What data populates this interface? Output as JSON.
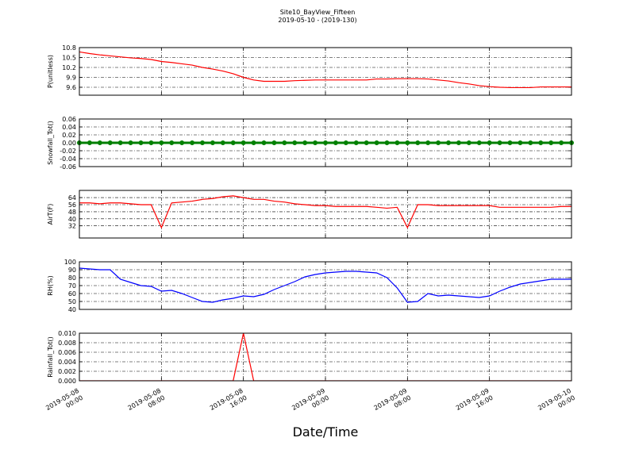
{
  "title": "Site10_BayView_Fifteen",
  "subtitle": "2019-05-10 - (2019-130)",
  "x_label": "Date/Time",
  "xlim": [
    "2019-05-08 00:00",
    "2019-05-10 00:00"
  ],
  "xticks": [
    "2019-05-08 00:00",
    "2019-05-08 08:00",
    "2019-05-08 16:00",
    "2019-05-09 00:00",
    "2019-05-09 08:00",
    "2019-05-09 16:00",
    "2019-05-10 00:00"
  ],
  "x": [
    "2019-05-08 00:00",
    "2019-05-08 01:00",
    "2019-05-08 02:00",
    "2019-05-08 03:00",
    "2019-05-08 04:00",
    "2019-05-08 05:00",
    "2019-05-08 06:00",
    "2019-05-08 07:00",
    "2019-05-08 08:00",
    "2019-05-08 09:00",
    "2019-05-08 10:00",
    "2019-05-08 11:00",
    "2019-05-08 12:00",
    "2019-05-08 13:00",
    "2019-05-08 14:00",
    "2019-05-08 15:00",
    "2019-05-08 16:00",
    "2019-05-08 17:00",
    "2019-05-08 18:00",
    "2019-05-08 19:00",
    "2019-05-08 20:00",
    "2019-05-08 21:00",
    "2019-05-08 22:00",
    "2019-05-08 23:00",
    "2019-05-09 00:00",
    "2019-05-09 01:00",
    "2019-05-09 02:00",
    "2019-05-09 03:00",
    "2019-05-09 04:00",
    "2019-05-09 05:00",
    "2019-05-09 06:00",
    "2019-05-09 07:00",
    "2019-05-09 08:00",
    "2019-05-09 09:00",
    "2019-05-09 10:00",
    "2019-05-09 11:00",
    "2019-05-09 12:00",
    "2019-05-09 13:00",
    "2019-05-09 14:00",
    "2019-05-09 15:00",
    "2019-05-09 16:00",
    "2019-05-09 17:00",
    "2019-05-09 18:00",
    "2019-05-09 19:00",
    "2019-05-09 20:00",
    "2019-05-09 21:00",
    "2019-05-09 22:00",
    "2019-05-09 23:00",
    "2019-05-10 00:00"
  ],
  "chart_data": [
    {
      "type": "line",
      "y_label": "P(unitless)",
      "color": "#ff0000",
      "grid": true,
      "ylim": [
        9.36,
        10.8
      ],
      "yticks": [
        {
          "value": 9.6,
          "label": "9.6"
        },
        {
          "value": 9.9,
          "label": "9.9"
        },
        {
          "value": 10.2,
          "label": "10.2"
        },
        {
          "value": 10.5,
          "label": "10.5"
        },
        {
          "value": 10.8,
          "label": "10.8"
        }
      ],
      "values": [
        10.67,
        10.62,
        10.58,
        10.55,
        10.52,
        10.49,
        10.47,
        10.44,
        10.38,
        10.35,
        10.31,
        10.27,
        10.2,
        10.15,
        10.09,
        10.01,
        9.9,
        9.82,
        9.78,
        9.78,
        9.78,
        9.8,
        9.81,
        9.82,
        9.82,
        9.82,
        9.82,
        9.82,
        9.82,
        9.85,
        9.85,
        9.86,
        9.86,
        9.86,
        9.85,
        9.82,
        9.79,
        9.74,
        9.7,
        9.65,
        9.62,
        9.6,
        9.59,
        9.59,
        9.59,
        9.61,
        9.61,
        9.61,
        9.61
      ]
    },
    {
      "type": "line",
      "y_label": "Snowfall_Tot()",
      "color": "#008000",
      "markers": true,
      "grid": true,
      "ylim": [
        -0.06,
        0.06
      ],
      "yticks": [
        -0.06,
        -0.04,
        -0.02,
        {
          "value": 0,
          "label": "0.00"
        },
        0.02,
        0.04,
        0.06
      ],
      "values": [
        0,
        0,
        0,
        0,
        0,
        0,
        0,
        0,
        0,
        0,
        0,
        0,
        0,
        0,
        0,
        0,
        0,
        0,
        0,
        0,
        0,
        0,
        0,
        0,
        0,
        0,
        0,
        0,
        0,
        0,
        0,
        0,
        0,
        0,
        0,
        0,
        0,
        0,
        0,
        0,
        0,
        0,
        0,
        0,
        0,
        0,
        0,
        0,
        0
      ]
    },
    {
      "type": "line",
      "y_label": "AirT(F)",
      "color": "#ff0000",
      "grid": true,
      "ylim": [
        18.2,
        72.2
      ],
      "yticks": [
        32,
        40,
        48,
        56,
        64
      ],
      "values": [
        58,
        58,
        57,
        58,
        58,
        57,
        56,
        56,
        30,
        58,
        59,
        60,
        62,
        63,
        65,
        66,
        64,
        62,
        62,
        60,
        59,
        57,
        56,
        55,
        55,
        54,
        54,
        54,
        54,
        53,
        52,
        53,
        30,
        56,
        56,
        55,
        55,
        55,
        55,
        55,
        55,
        53,
        53,
        53,
        53,
        53,
        53,
        54,
        54
      ]
    },
    {
      "type": "line",
      "y_label": "RH(%)",
      "color": "#0000ff",
      "grid": true,
      "ylim": [
        40,
        100
      ],
      "yticks": [
        40,
        50,
        60,
        70,
        80,
        90,
        100
      ],
      "values": [
        92,
        91,
        90,
        90,
        78,
        74,
        70,
        69,
        63,
        64,
        60,
        55,
        50,
        49,
        52,
        54,
        57,
        56,
        59,
        65,
        70,
        75,
        81,
        84,
        86,
        87,
        88,
        88,
        87,
        86,
        80,
        67,
        49,
        50,
        60,
        57,
        58,
        57,
        56,
        55,
        57,
        63,
        68,
        72,
        74,
        76,
        78,
        78,
        78
      ]
    },
    {
      "type": "line",
      "y_label": "Rainfall_Tot()",
      "color": "#ff0000",
      "grid": true,
      "ylim": [
        0,
        0.01
      ],
      "yticks": [
        {
          "value": 0,
          "label": "0.000"
        },
        0.002,
        0.004,
        0.006,
        0.008,
        {
          "value": 0.01,
          "label": "0.010"
        }
      ],
      "values": [
        0,
        0,
        0,
        0,
        0,
        0,
        0,
        0,
        0,
        0,
        0,
        0,
        0,
        0,
        0,
        0,
        0.01,
        0,
        0,
        0,
        0,
        0,
        0,
        0,
        0,
        0,
        0,
        0,
        0,
        0,
        0,
        0,
        0,
        0,
        0,
        0,
        0,
        0,
        0,
        0,
        0,
        0,
        0,
        0,
        0,
        0,
        0,
        0,
        0
      ]
    }
  ]
}
